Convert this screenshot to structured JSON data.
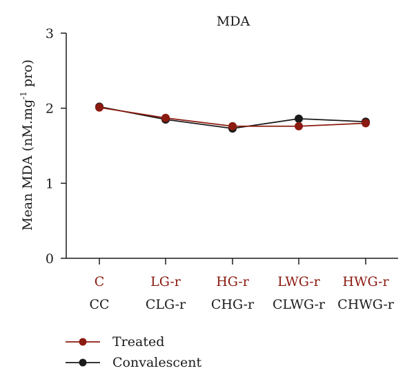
{
  "chart_data": {
    "type": "line",
    "title": "MDA",
    "ylabel": "Mean MDA (nM.mg",
    "ylabel_sup": "-1",
    "ylabel_suffix": " pro)",
    "ylim": [
      0,
      3
    ],
    "yticks": [
      "0",
      "1",
      "2",
      "3"
    ],
    "categories_top": [
      "C",
      "LG-r",
      "HG-r",
      "LWG-r",
      "HWG-r"
    ],
    "categories_bottom": [
      "CC",
      "CLG-r",
      "CHG-r",
      "CLWG-r",
      "CHWG-r"
    ],
    "series": [
      {
        "name": "Treated",
        "color": "#8b1a10",
        "values": [
          2.01,
          1.87,
          1.76,
          1.76,
          1.8
        ]
      },
      {
        "name": "Convalescent",
        "color": "#1a1a1a",
        "values": [
          2.02,
          1.85,
          1.73,
          1.86,
          1.82
        ]
      }
    ],
    "category_top_color": "#8b1a10",
    "legend_position": "bottom-left"
  }
}
